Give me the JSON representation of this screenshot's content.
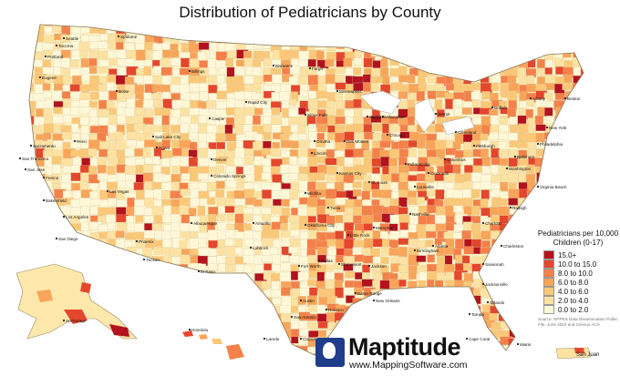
{
  "title": "Distribution of Pediatricians by County",
  "legend": {
    "title_line1": "Pediatricians per 10,000",
    "title_line2": "Children (0-17)",
    "classes": [
      {
        "label": "15.0+",
        "color": "#b3121f"
      },
      {
        "label": "10.0 to 15.0",
        "color": "#e4472c"
      },
      {
        "label": "8.0 to 10.0",
        "color": "#f5814a"
      },
      {
        "label": "6.0 to 8.0",
        "color": "#f8a55a"
      },
      {
        "label": "4.0 to 6.0",
        "color": "#fbc878"
      },
      {
        "label": "2.0 to 4.0",
        "color": "#fde2a2"
      },
      {
        "label": "0.0 to 2.0",
        "color": "#fff8d8"
      }
    ]
  },
  "source": "Source: NPPES Data Dissemination Public File, June 2024 and Census ACS",
  "logo": {
    "name": "Maptitude",
    "url": "www.MappingSoftware.com"
  },
  "inset_labels": {
    "puerto_rico": "San Juan",
    "ponce": "Ponce"
  },
  "cities": [
    {
      "name": "Seattle"
    },
    {
      "name": "Tacoma"
    },
    {
      "name": "Spokane"
    },
    {
      "name": "Portland"
    },
    {
      "name": "Eugene"
    },
    {
      "name": "Boise"
    },
    {
      "name": "Reno"
    },
    {
      "name": "Sacramento"
    },
    {
      "name": "San Francisco"
    },
    {
      "name": "San Jose"
    },
    {
      "name": "Fresno"
    },
    {
      "name": "Bakersfield"
    },
    {
      "name": "Los Angeles"
    },
    {
      "name": "San Diego"
    },
    {
      "name": "Las Vegas"
    },
    {
      "name": "Phoenix"
    },
    {
      "name": "Tucson"
    },
    {
      "name": "Salt Lake City"
    },
    {
      "name": "Provo"
    },
    {
      "name": "Denver"
    },
    {
      "name": "Colorado Springs"
    },
    {
      "name": "Albuquerque"
    },
    {
      "name": "El Paso"
    },
    {
      "name": "Billings"
    },
    {
      "name": "Casper"
    },
    {
      "name": "Rapid City"
    },
    {
      "name": "Fargo"
    },
    {
      "name": "Bismarck"
    },
    {
      "name": "Sioux Falls"
    },
    {
      "name": "Omaha"
    },
    {
      "name": "Lincoln"
    },
    {
      "name": "Wichita"
    },
    {
      "name": "Kansas City"
    },
    {
      "name": "Oklahoma City"
    },
    {
      "name": "Tulsa"
    },
    {
      "name": "Dallas"
    },
    {
      "name": "Fort Worth"
    },
    {
      "name": "Austin"
    },
    {
      "name": "San Antonio"
    },
    {
      "name": "Houston"
    },
    {
      "name": "Corpus Christi"
    },
    {
      "name": "Laredo"
    },
    {
      "name": "Lubbock"
    },
    {
      "name": "Amarillo"
    },
    {
      "name": "Minneapolis"
    },
    {
      "name": "Des Moines"
    },
    {
      "name": "Madison"
    },
    {
      "name": "Milwaukee"
    },
    {
      "name": "Chicago"
    },
    {
      "name": "St. Louis"
    },
    {
      "name": "Memphis"
    },
    {
      "name": "Nashville"
    },
    {
      "name": "Little Rock"
    },
    {
      "name": "Shreveport"
    },
    {
      "name": "Jackson"
    },
    {
      "name": "Baton Rouge"
    },
    {
      "name": "New Orleans"
    },
    {
      "name": "Birmingham"
    },
    {
      "name": "Atlanta"
    },
    {
      "name": "Indianapolis"
    },
    {
      "name": "Louisville"
    },
    {
      "name": "Cincinnati"
    },
    {
      "name": "Columbus"
    },
    {
      "name": "Cleveland"
    },
    {
      "name": "Detroit"
    },
    {
      "name": "Pittsburgh"
    },
    {
      "name": "Buffalo"
    },
    {
      "name": "Albany"
    },
    {
      "name": "Boston"
    },
    {
      "name": "New York"
    },
    {
      "name": "Philadelphia"
    },
    {
      "name": "Baltimore"
    },
    {
      "name": "Washington"
    },
    {
      "name": "Virginia Beach"
    },
    {
      "name": "Raleigh"
    },
    {
      "name": "Charlotte"
    },
    {
      "name": "Charleston"
    },
    {
      "name": "Savannah"
    },
    {
      "name": "Jacksonville"
    },
    {
      "name": "Tampa"
    },
    {
      "name": "Orlando"
    },
    {
      "name": "Miami"
    },
    {
      "name": "Cape Coral"
    },
    {
      "name": "Anchorage"
    },
    {
      "name": "Honolulu"
    }
  ]
}
